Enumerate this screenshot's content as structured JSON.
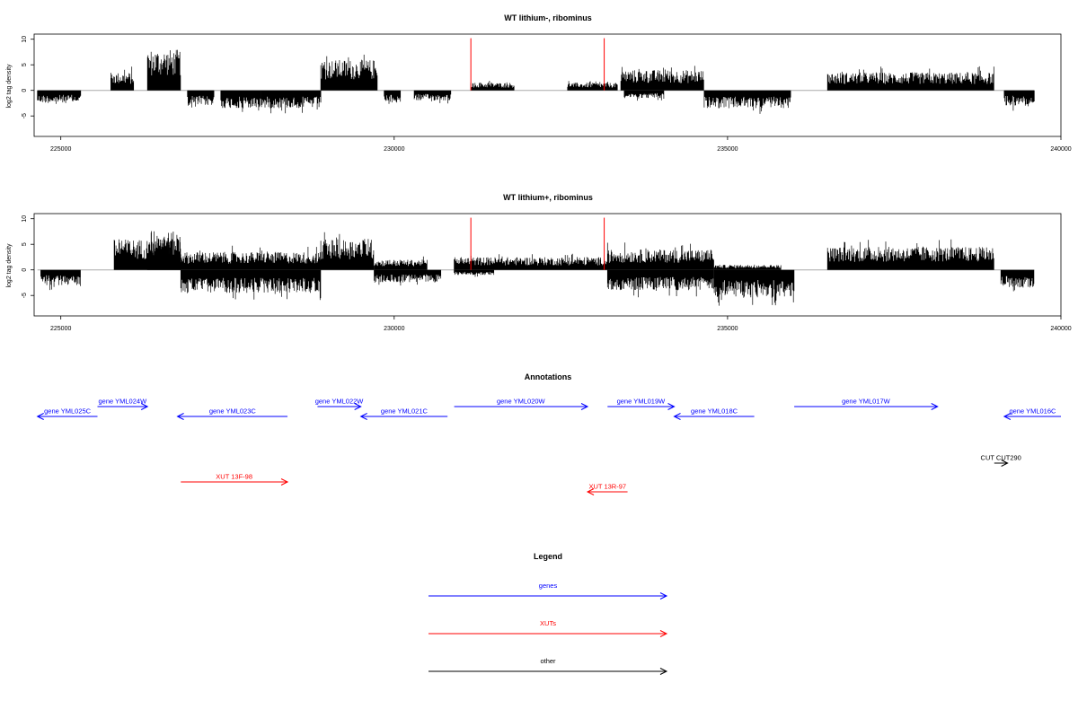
{
  "colors": {
    "gene": "#0000ff",
    "xut": "#ff0000",
    "other": "#000000",
    "marker": "#ff0000",
    "baseline": "#aaaaaa",
    "frame": "#000000"
  },
  "chart_data": [
    {
      "type": "bar",
      "title": "WT lithium-, ribominus",
      "ylabel": "log2 tag density",
      "xlim": [
        224600,
        240000
      ],
      "ylim": [
        -9,
        11
      ],
      "xticks": [
        225000,
        230000,
        235000,
        240000
      ],
      "xtick_labels": [
        "225000",
        "230000",
        "235000",
        "240000"
      ],
      "yticks": [
        -5,
        0,
        5,
        10
      ],
      "ytick_labels": [
        "-5",
        "0",
        "5",
        "10"
      ],
      "markers_x": [
        231150,
        233150
      ],
      "series": [
        {
          "segments": [
            [
              224650,
              225300,
              -2.5
            ],
            [
              225750,
              226100,
              3.5
            ],
            [
              226300,
              226800,
              8
            ],
            [
              226900,
              227300,
              -3
            ],
            [
              227400,
              228000,
              -3.5
            ],
            [
              228000,
              228900,
              -3.5
            ],
            [
              228900,
              229750,
              6
            ],
            [
              229850,
              230100,
              -2.5
            ],
            [
              230300,
              230850,
              -2
            ],
            [
              231150,
              231800,
              1.5
            ],
            [
              232600,
              233350,
              1.5
            ],
            [
              233450,
              234050,
              -1.5
            ],
            [
              233400,
              234650,
              4
            ],
            [
              234650,
              235950,
              -3.5
            ],
            [
              236500,
              239000,
              3.5
            ],
            [
              239150,
              239600,
              -3
            ]
          ]
        }
      ]
    },
    {
      "type": "bar",
      "title": "WT lithium+, ribominus",
      "ylabel": "log2 tag density",
      "xlim": [
        224600,
        240000
      ],
      "ylim": [
        -9,
        11
      ],
      "xticks": [
        225000,
        230000,
        235000,
        240000
      ],
      "xtick_labels": [
        "225000",
        "230000",
        "235000",
        "240000"
      ],
      "yticks": [
        -5,
        0,
        5,
        10
      ],
      "ytick_labels": [
        "-5",
        "0",
        "5",
        "10"
      ],
      "markers_x": [
        231150,
        233150
      ],
      "series": [
        {
          "segments": [
            [
              224700,
              225300,
              -3
            ],
            [
              225800,
              226800,
              6
            ],
            [
              226300,
              226800,
              7.5
            ],
            [
              226800,
              228900,
              3.5
            ],
            [
              226800,
              228900,
              -4.5
            ],
            [
              228900,
              229700,
              6
            ],
            [
              229700,
              230500,
              2
            ],
            [
              229700,
              230700,
              -2.5
            ],
            [
              230900,
              233200,
              2.5
            ],
            [
              230900,
              231500,
              -1
            ],
            [
              233200,
              234800,
              4
            ],
            [
              233200,
              234800,
              -4
            ],
            [
              234800,
              236000,
              -5.5
            ],
            [
              234800,
              235800,
              1
            ],
            [
              236500,
              239000,
              4.5
            ],
            [
              239100,
              239600,
              -3.5
            ]
          ]
        }
      ]
    }
  ],
  "annotations": {
    "title": "Annotations",
    "xlim": [
      224600,
      240000
    ],
    "items": [
      {
        "label": "gene YML025C",
        "kind": "gene",
        "start": 224650,
        "end": 225550,
        "strand": "-",
        "row": 1
      },
      {
        "label": "gene YML024W",
        "kind": "gene",
        "start": 225550,
        "end": 226300,
        "strand": "+",
        "row": 0
      },
      {
        "label": "gene YML023C",
        "kind": "gene",
        "start": 226750,
        "end": 228400,
        "strand": "-",
        "row": 1
      },
      {
        "label": "gene YML022W",
        "kind": "gene",
        "start": 228850,
        "end": 229500,
        "strand": "+",
        "row": 0
      },
      {
        "label": "gene YML021C",
        "kind": "gene",
        "start": 229500,
        "end": 230800,
        "strand": "-",
        "row": 1
      },
      {
        "label": "gene YML020W",
        "kind": "gene",
        "start": 230900,
        "end": 232900,
        "strand": "+",
        "row": 0
      },
      {
        "label": "gene YML019W",
        "kind": "gene",
        "start": 233200,
        "end": 234200,
        "strand": "+",
        "row": 0
      },
      {
        "label": "gene YML018C",
        "kind": "gene",
        "start": 234200,
        "end": 235400,
        "strand": "-",
        "row": 1
      },
      {
        "label": "gene YML017W",
        "kind": "gene",
        "start": 236000,
        "end": 238150,
        "strand": "+",
        "row": 0
      },
      {
        "label": "gene YML016C",
        "kind": "gene",
        "start": 239150,
        "end": 240000,
        "strand": "-",
        "row": 1
      },
      {
        "label": "CUT CUT290",
        "kind": "other",
        "start": 239000,
        "end": 239200,
        "strand": "+",
        "row": 3
      },
      {
        "label": "XUT 13F-98",
        "kind": "xut",
        "start": 226800,
        "end": 228400,
        "strand": "+",
        "row": 4
      },
      {
        "label": "XUT 13R-97",
        "kind": "xut",
        "start": 232900,
        "end": 233500,
        "strand": "-",
        "row": 5
      }
    ]
  },
  "legend": {
    "title": "Legend",
    "items": [
      {
        "label": "genes",
        "kind": "gene"
      },
      {
        "label": "XUTs",
        "kind": "xut"
      },
      {
        "label": "other",
        "kind": "other"
      }
    ]
  }
}
